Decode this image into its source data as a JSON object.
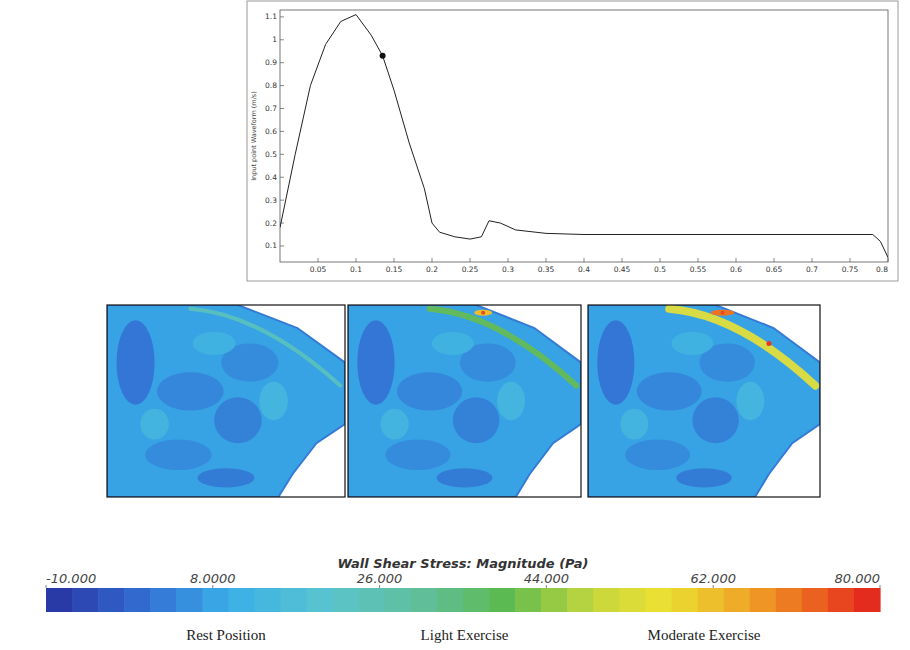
{
  "chart_data": {
    "type": "line",
    "ylabel": "Input point Waveform (m/s)",
    "xlim": [
      0,
      0.8
    ],
    "ylim": [
      0.03,
      1.13
    ],
    "xticks": [
      0.05,
      0.1,
      0.15,
      0.2,
      0.25,
      0.3,
      0.35,
      0.4,
      0.45,
      0.5,
      0.55,
      0.6,
      0.65,
      0.7,
      0.75,
      0.8
    ],
    "yticks": [
      0.1,
      0.2,
      0.3,
      0.4,
      0.5,
      0.6,
      0.7,
      0.8,
      0.9,
      1,
      1.1
    ],
    "grid": false,
    "series": [
      {
        "type": "line",
        "color": "#222222",
        "x": [
          0,
          0.02,
          0.04,
          0.06,
          0.08,
          0.1,
          0.12,
          0.135,
          0.15,
          0.17,
          0.19,
          0.2,
          0.21,
          0.23,
          0.25,
          0.265,
          0.275,
          0.29,
          0.31,
          0.35,
          0.4,
          0.5,
          0.6,
          0.7,
          0.78,
          0.79,
          0.8
        ],
        "values": [
          0.18,
          0.5,
          0.8,
          0.98,
          1.08,
          1.11,
          1.02,
          0.93,
          0.78,
          0.55,
          0.35,
          0.2,
          0.16,
          0.14,
          0.13,
          0.14,
          0.21,
          0.2,
          0.17,
          0.155,
          0.15,
          0.15,
          0.15,
          0.15,
          0.15,
          0.12,
          0.05
        ]
      },
      {
        "type": "scatter",
        "color": "#111111",
        "marker": "circle",
        "x": [
          0.135
        ],
        "values": [
          0.93
        ]
      }
    ]
  },
  "colorbar": {
    "title": "Wall Shear Stress: Magnitude (Pa)",
    "range": [
      -10,
      80
    ],
    "ticks": [
      {
        "value": -10,
        "label": "-10.000"
      },
      {
        "value": 8,
        "label": "8.0000"
      },
      {
        "value": 26,
        "label": "26.000"
      },
      {
        "value": 44,
        "label": "44.000"
      },
      {
        "value": 62,
        "label": "62.000"
      },
      {
        "value": 80,
        "label": "80.000"
      }
    ]
  },
  "panels": [
    {
      "label": "Rest Position"
    },
    {
      "label": "Light Exercise"
    },
    {
      "label": "Moderate Exercise"
    }
  ]
}
